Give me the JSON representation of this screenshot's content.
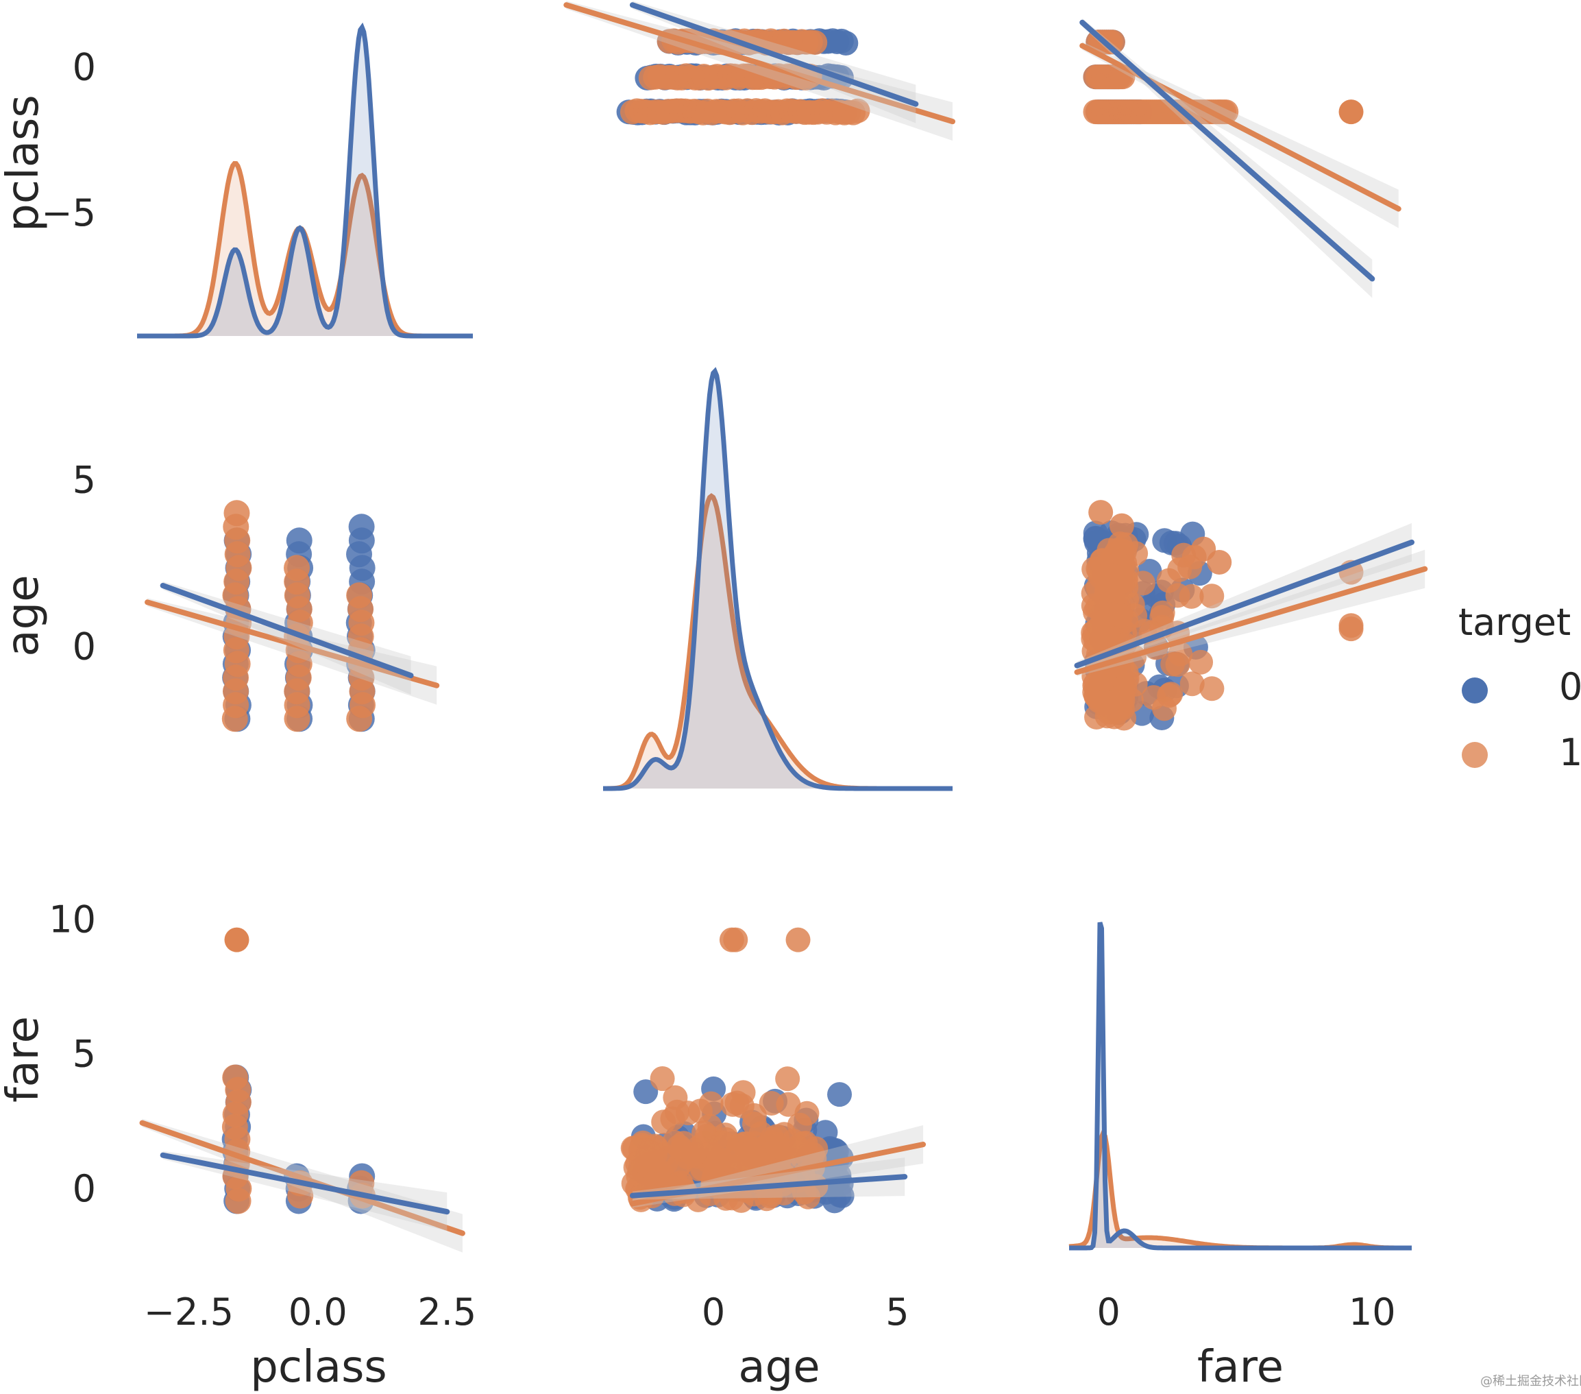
{
  "chart_data": {
    "type": "pairplot",
    "variables": [
      "pclass",
      "age",
      "fare"
    ],
    "hue": {
      "title": "target",
      "levels": [
        {
          "label": "0",
          "color": "#4c72b0"
        },
        {
          "label": "1",
          "color": "#dd8452"
        }
      ]
    },
    "axis_ticks": {
      "pclass_x": [
        "−2.5",
        "0.0",
        "2.5"
      ],
      "age_x": [
        "0",
        "5"
      ],
      "fare_x": [
        "0",
        "10"
      ],
      "pclass_y": [
        "0",
        "−5"
      ],
      "age_y": [
        "5",
        "0"
      ],
      "fare_y": [
        "10",
        "5",
        "0"
      ]
    },
    "ranges": {
      "pclass": [
        -3.5,
        3.0
      ],
      "age": [
        -3.0,
        6.5
      ],
      "fare": [
        -1.5,
        11.5
      ],
      "pclass_row_y": [
        -9.5,
        1.8
      ],
      "age_row_y": [
        -4.5,
        6.0
      ],
      "fare_row_y": [
        -2.5,
        11.0
      ]
    },
    "scatter": {
      "pclass": {
        "target0": [
          -1.57,
          -0.37,
          0.83
        ],
        "target1": [
          -1.57,
          -0.37,
          0.83
        ]
      },
      "fare_extremes": [
        {
          "pclass": -1.57,
          "age": 0.2,
          "age2": 1.0,
          "fare": 9.2
        }
      ],
      "age_at_pclass": {
        "target0": [
          [
            -1.57,
            -2.2,
            3.3
          ],
          [
            -0.37,
            -2.2,
            3.3
          ],
          [
            0.83,
            -2.2,
            3.6
          ]
        ],
        "target1": [
          [
            -1.57,
            -2.2,
            4.0
          ],
          [
            -0.37,
            -2.2,
            2.7
          ],
          [
            0.83,
            -2.2,
            1.6
          ]
        ]
      },
      "fare_at_pclass": {
        "target0": [
          [
            -1.57,
            -0.5,
            4.5
          ],
          [
            -0.37,
            -0.5,
            0.7
          ],
          [
            0.83,
            -0.5,
            0.7
          ]
        ],
        "target1": [
          [
            -1.57,
            -0.5,
            9.2
          ],
          [
            -0.37,
            -0.3,
            0.5
          ],
          [
            0.83,
            -0.3,
            0.5
          ]
        ]
      }
    },
    "regression_lines": {
      "pclass_vs_age": {
        "target0": {
          "x0": -2.2,
          "y0": 2.1,
          "x1": 5.5,
          "y1": -1.3
        },
        "target1": {
          "x0": -4.0,
          "y0": 2.1,
          "x1": 6.5,
          "y1": -1.9
        }
      },
      "pclass_vs_fare": {
        "target0": {
          "x0": -1.0,
          "y0": 1.5,
          "x1": 10.0,
          "y1": -7.3
        },
        "target1": {
          "x0": -1.0,
          "y0": 0.7,
          "x1": 11.0,
          "y1": -4.9
        }
      },
      "age_vs_pclass": {
        "target0": {
          "x0": -3.0,
          "y0": 1.8,
          "x1": 1.8,
          "y1": -0.9
        },
        "target1": {
          "x0": -3.3,
          "y0": 1.3,
          "x1": 2.3,
          "y1": -1.2
        }
      },
      "age_vs_fare": {
        "target0": {
          "x0": -1.2,
          "y0": -0.6,
          "x1": 11.5,
          "y1": 3.1
        },
        "target1": {
          "x0": -1.2,
          "y0": -0.8,
          "x1": 12.0,
          "y1": 2.3
        }
      },
      "fare_vs_pclass": {
        "target0": {
          "x0": -3.0,
          "y0": 1.2,
          "x1": 2.5,
          "y1": -0.9
        },
        "target1": {
          "x0": -3.4,
          "y0": 2.4,
          "x1": 2.8,
          "y1": -1.7
        }
      },
      "fare_vs_age": {
        "target0": {
          "x0": -2.2,
          "y0": -0.3,
          "x1": 5.2,
          "y1": 0.4
        },
        "target1": {
          "x0": -2.2,
          "y0": -0.6,
          "x1": 5.7,
          "y1": 1.6
        }
      }
    },
    "kde": {
      "pclass": {
        "peaks_target0": [
          [
            -1.6,
            0.28
          ],
          [
            -0.35,
            0.35
          ],
          [
            0.85,
            1.0
          ]
        ],
        "peaks_target1": [
          [
            -1.6,
            0.56
          ],
          [
            -0.35,
            0.35
          ],
          [
            0.85,
            0.52
          ]
        ]
      },
      "age": {
        "peak_target0": [
          0.0,
          1.0
        ],
        "peak_target1": [
          -0.1,
          0.75
        ]
      },
      "fare": {
        "peak_target0": [
          -0.3,
          1.0
        ],
        "peak_target1": [
          -0.2,
          0.32
        ]
      }
    }
  },
  "watermark": "@稀土掘金技术社区"
}
